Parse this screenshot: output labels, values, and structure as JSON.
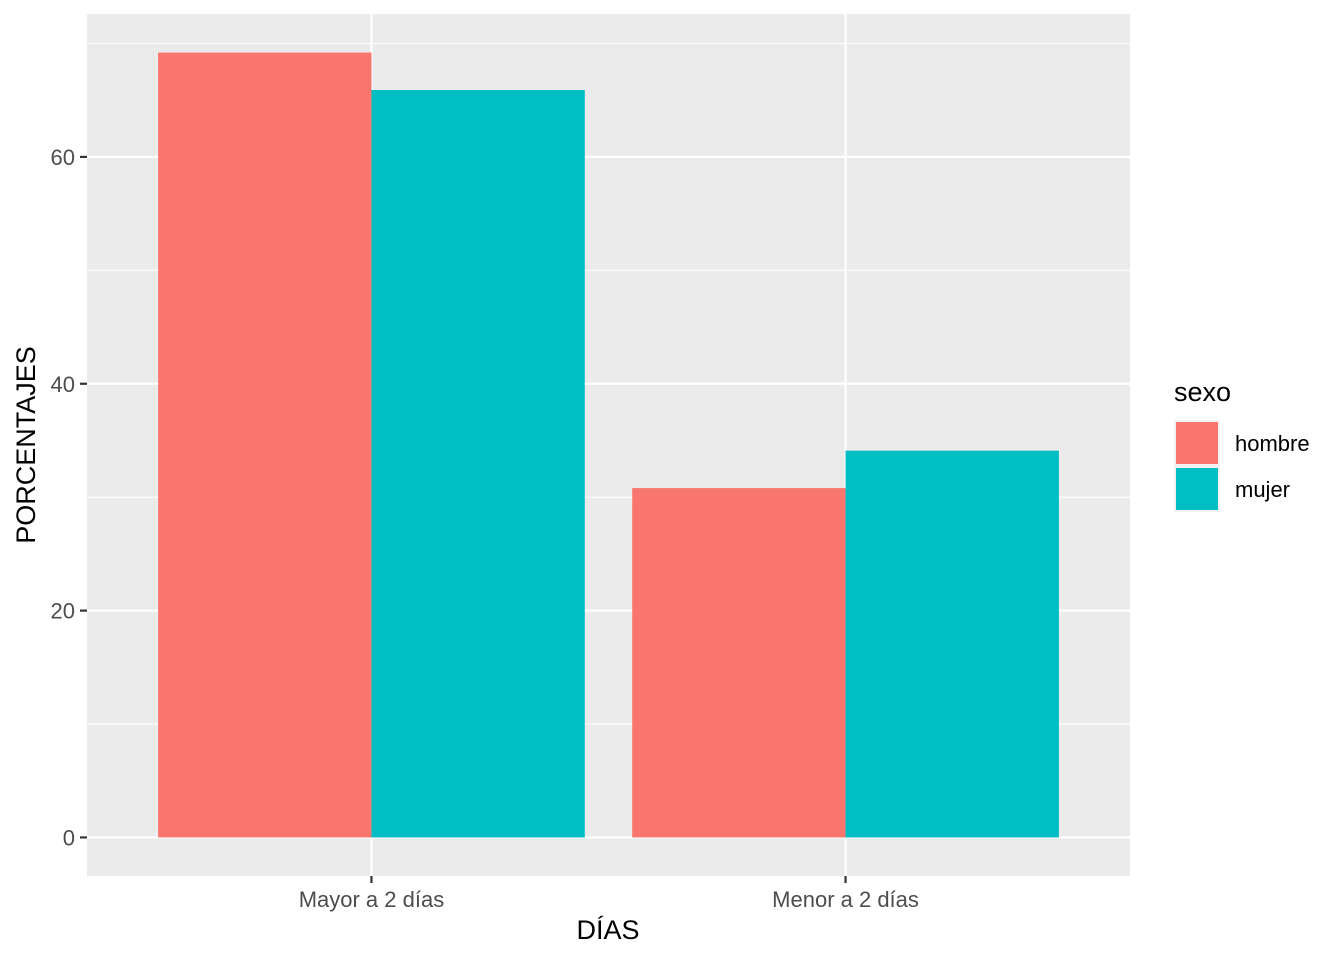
{
  "chart_data": {
    "type": "bar",
    "title": "",
    "xlabel": "DÍAS",
    "ylabel": "PORCENTAJES",
    "categories": [
      "Mayor a 2 días",
      "Menor a 2 días"
    ],
    "series": [
      {
        "name": "hombre",
        "values": [
          69.2,
          30.8
        ],
        "color": "#F8766D"
      },
      {
        "name": "mujer",
        "values": [
          65.9,
          34.1
        ],
        "color": "#00BFC4"
      }
    ],
    "ylim": [
      -3.4,
      72.6
    ],
    "yticks": [
      0,
      20,
      40,
      60
    ],
    "grid": true,
    "legend": {
      "title": "sexo",
      "placement": "right"
    },
    "panel_background": "#EBEBEB",
    "grid_color": "#FFFFFF"
  }
}
